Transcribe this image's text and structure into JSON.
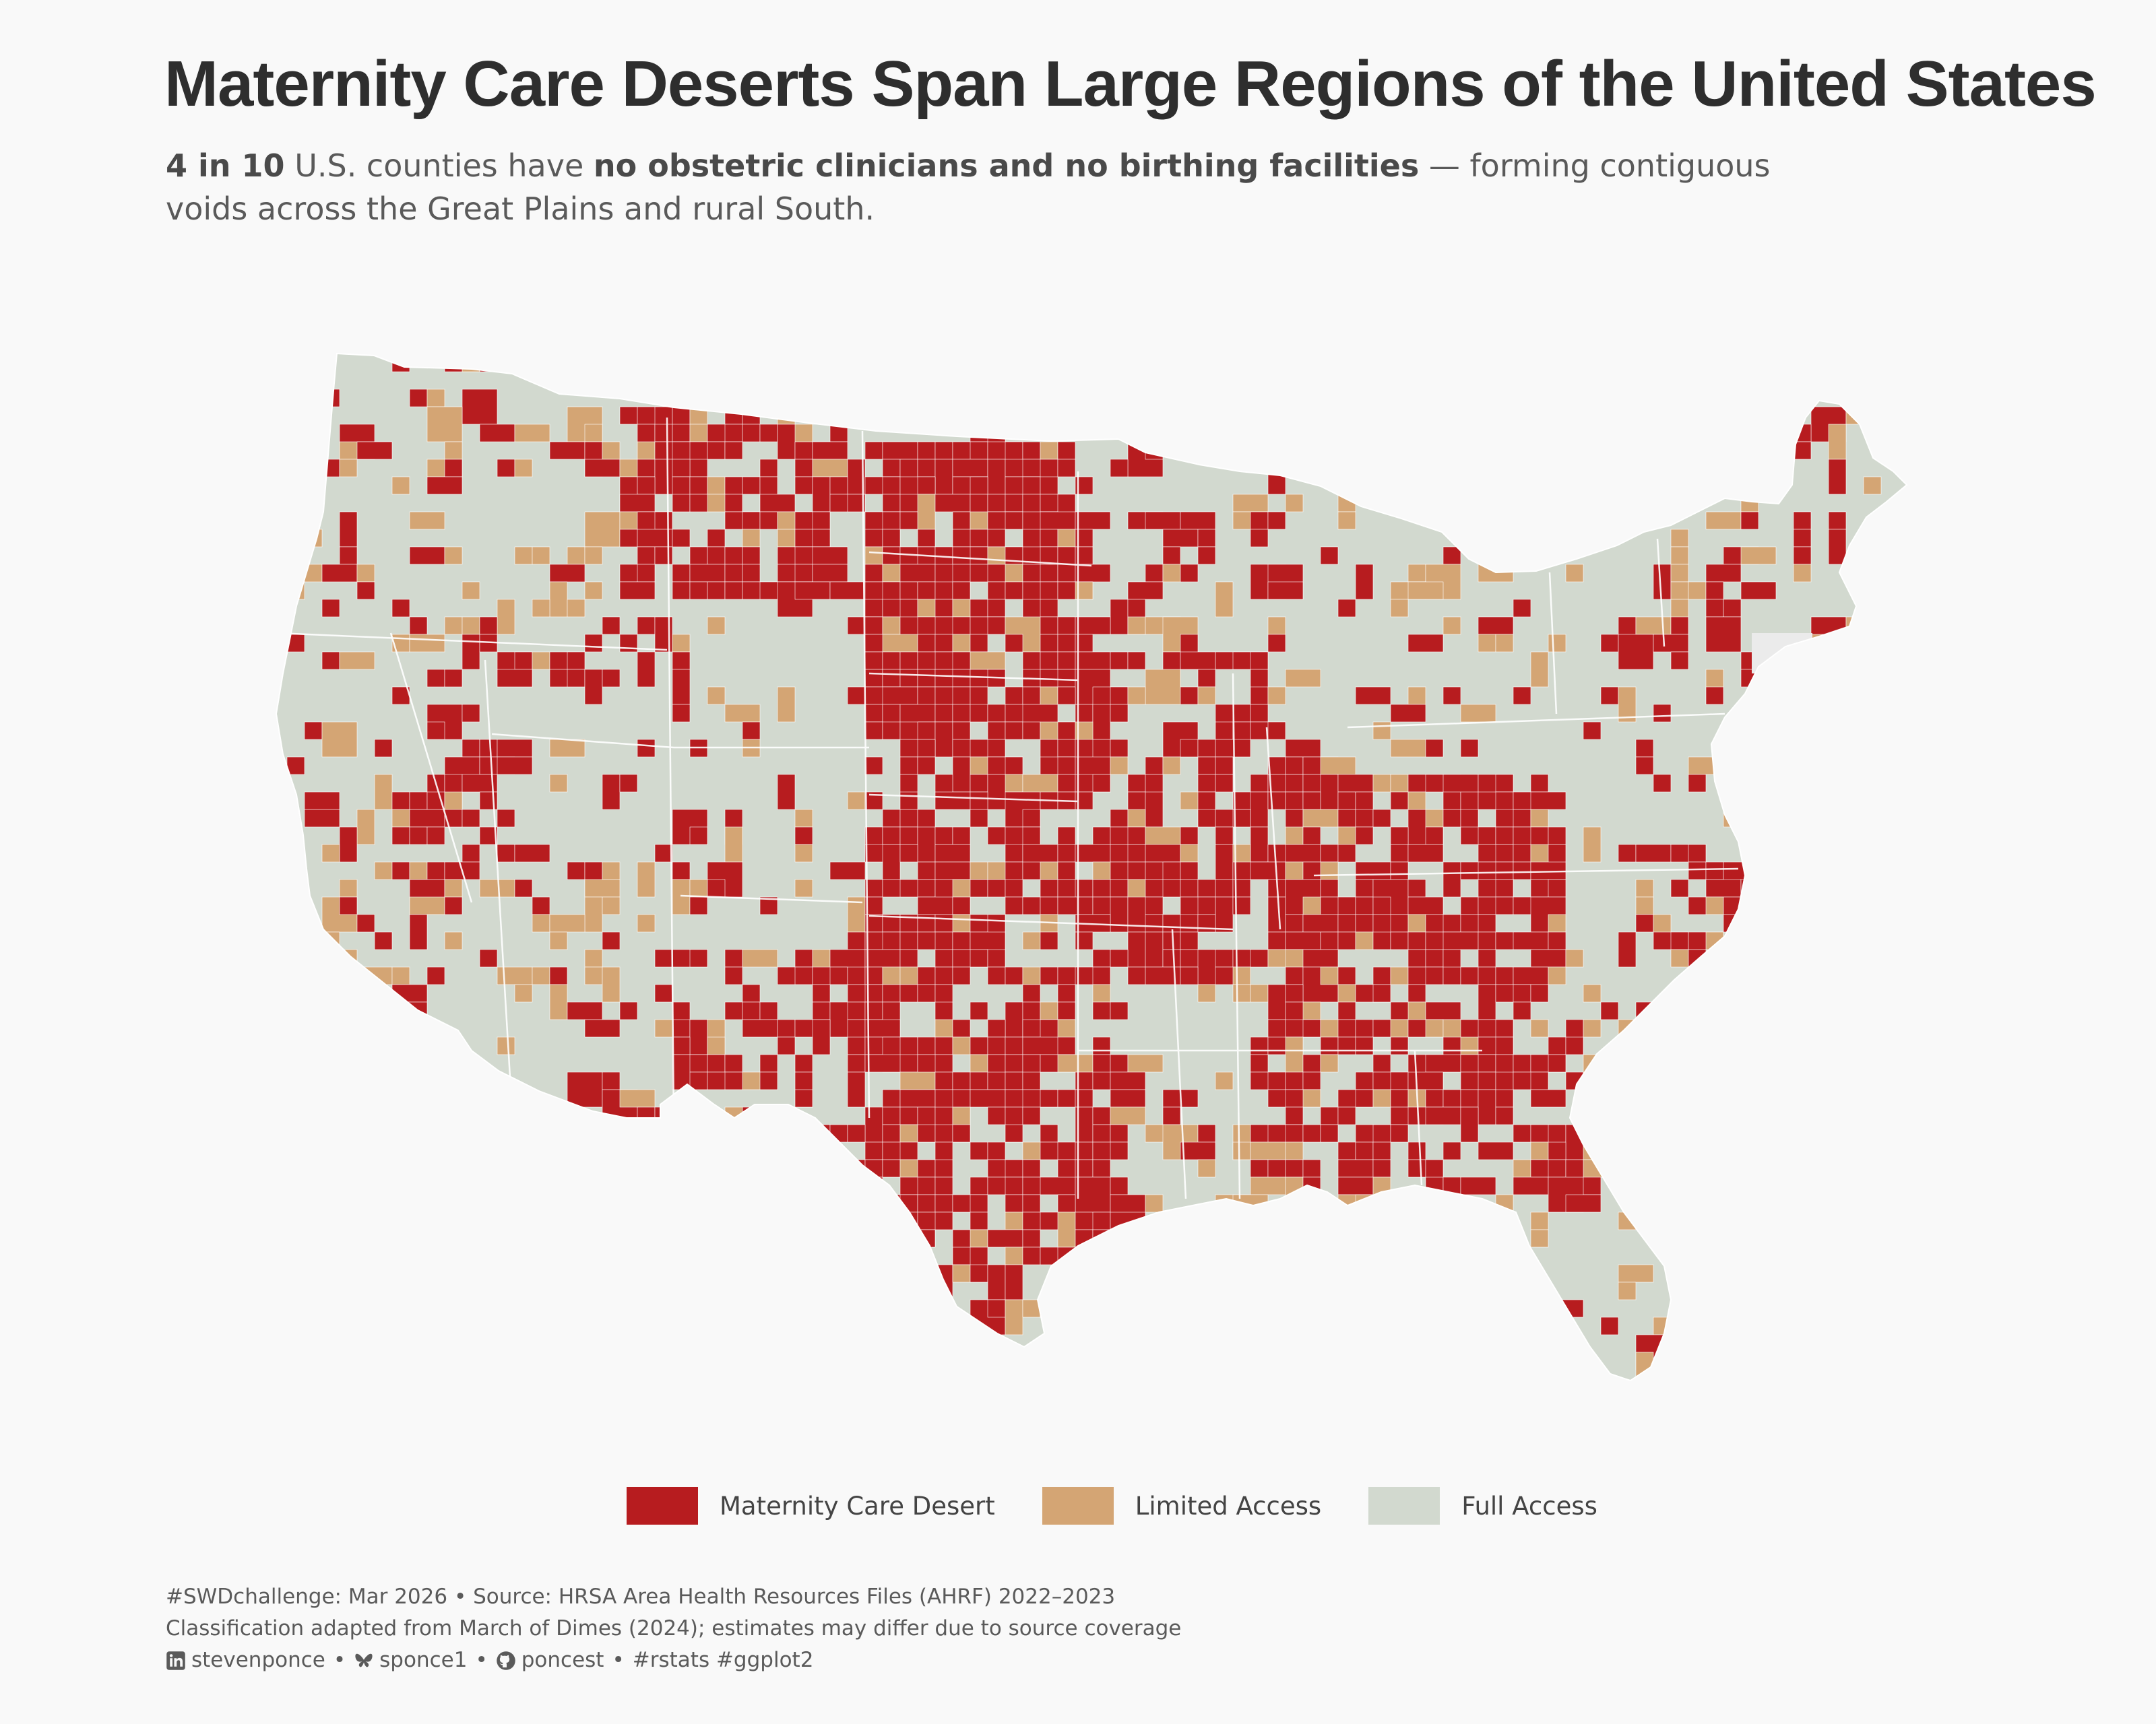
{
  "title": "Maternity Care Deserts Span Large Regions of the United States",
  "subtitle": {
    "stat": "4 in 10",
    "text1": " U.S. counties have ",
    "emph": "no obstetric clinicians and no birthing facilities",
    "text2": " — forming contiguous voids across the Great Plains and rural South."
  },
  "legend": [
    {
      "label": "Maternity Care Desert",
      "color": "#b71c1f"
    },
    {
      "label": "Limited Access",
      "color": "#d4a574"
    },
    {
      "label": "Full Access",
      "color": "#d2d9cf"
    }
  ],
  "map_colors": {
    "desert": "#b71c1f",
    "limited": "#d4a574",
    "full": "#d2d9cf",
    "nodata": "#ebebeb",
    "border": "#ffffff"
  },
  "caption": {
    "line1": "#SWDchallenge: Mar 2026 • Source: HRSA Area Health Resources Files (AHRF) 2022–2023",
    "line2": "Classification adapted from March of Dimes (2024); estimates may differ due to source coverage",
    "linkedin": "stevenponce",
    "bluesky": "sponce1",
    "github": "poncest",
    "tags": "#rstats #ggplot2",
    "bullet": "•"
  }
}
